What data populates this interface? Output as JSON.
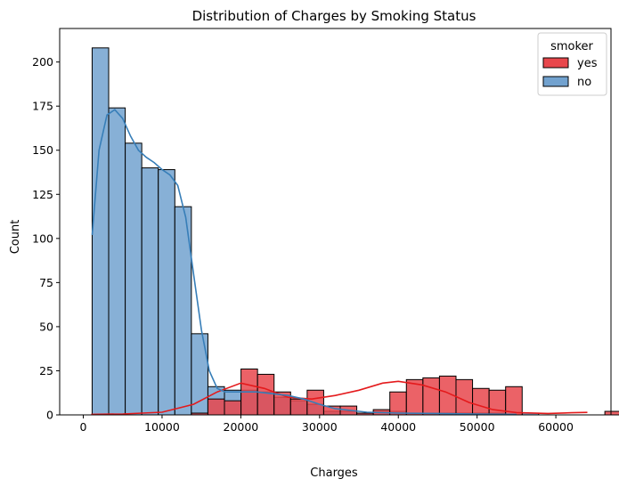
{
  "chart_data": {
    "type": "histogram",
    "title": "Distribution of Charges by Smoking Status",
    "xlabel": "Charges",
    "ylabel": "Count",
    "xlim": [
      -3000,
      67000
    ],
    "ylim": [
      0,
      219
    ],
    "xticks": [
      0,
      10000,
      20000,
      30000,
      40000,
      50000,
      60000
    ],
    "yticks": [
      0,
      25,
      50,
      75,
      100,
      125,
      150,
      175,
      200
    ],
    "bin_start": 1122,
    "bin_width": 2100,
    "legend": {
      "title": "smoker",
      "placement": "top-right"
    },
    "series": [
      {
        "name": "yes",
        "color": "#e8474c",
        "kde_color": "#e41a1c",
        "values": [
          0,
          0,
          0,
          0,
          0,
          0,
          1,
          9,
          8,
          26,
          23,
          13,
          9,
          14,
          5,
          5,
          1,
          3,
          13,
          20,
          21,
          22,
          20,
          15,
          14,
          16,
          0,
          0,
          0,
          0,
          0,
          2
        ],
        "kde": [
          [
            1000,
            0.3
          ],
          [
            5000,
            0.5
          ],
          [
            10000,
            1.5
          ],
          [
            14000,
            6
          ],
          [
            17000,
            13
          ],
          [
            20000,
            18
          ],
          [
            23000,
            15
          ],
          [
            26000,
            10
          ],
          [
            29000,
            9
          ],
          [
            32000,
            11
          ],
          [
            35000,
            14
          ],
          [
            38000,
            18
          ],
          [
            40000,
            19
          ],
          [
            43000,
            17
          ],
          [
            46000,
            13
          ],
          [
            49000,
            7
          ],
          [
            52000,
            3
          ],
          [
            55000,
            1.3
          ],
          [
            59000,
            0.8
          ],
          [
            62000,
            1.2
          ],
          [
            64000,
            1.4
          ]
        ]
      },
      {
        "name": "no",
        "color": "#72a2cf",
        "kde_color": "#377eb8",
        "values": [
          208,
          174,
          154,
          140,
          139,
          118,
          46,
          16,
          14,
          14,
          13,
          10,
          8,
          6,
          2,
          2,
          1,
          2,
          2,
          1,
          1,
          1,
          1,
          1,
          1,
          0,
          1,
          0,
          0,
          0,
          0,
          0
        ],
        "kde": [
          [
            1122,
            102
          ],
          [
            2000,
            150
          ],
          [
            3000,
            170
          ],
          [
            4000,
            173
          ],
          [
            5000,
            168
          ],
          [
            6000,
            158
          ],
          [
            7000,
            150
          ],
          [
            8000,
            146
          ],
          [
            9000,
            143
          ],
          [
            10000,
            139
          ],
          [
            11000,
            136
          ],
          [
            12000,
            130
          ],
          [
            13000,
            112
          ],
          [
            14000,
            80
          ],
          [
            15000,
            48
          ],
          [
            16000,
            25
          ],
          [
            17000,
            15
          ],
          [
            18000,
            13
          ],
          [
            20000,
            13
          ],
          [
            22000,
            13
          ],
          [
            24000,
            12
          ],
          [
            26000,
            11
          ],
          [
            28000,
            9
          ],
          [
            30000,
            6
          ],
          [
            32000,
            3.5
          ],
          [
            34000,
            2.5
          ],
          [
            36000,
            1.5
          ],
          [
            40000,
            1
          ],
          [
            45000,
            0.8
          ],
          [
            50000,
            0.5
          ],
          [
            55000,
            0.3
          ]
        ]
      }
    ]
  }
}
